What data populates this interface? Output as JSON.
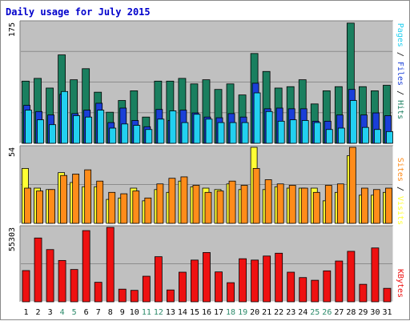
{
  "title": "Daily usage for July 2015",
  "colors": {
    "hits": "#1a7f5f",
    "files": "#1a3fd8",
    "pages": "#22d0f0",
    "visits": "#ffff33",
    "sites": "#ff8c1a",
    "kbytes": "#ee1111",
    "panel_bg": "#c0c0c0",
    "title": "#0000cc",
    "weekend_label": "#2b8a6a"
  },
  "chart_data": [
    {
      "type": "bar",
      "name": "hits-files-pages",
      "categories": [
        "1",
        "2",
        "3",
        "4",
        "5",
        "6",
        "7",
        "8",
        "9",
        "10",
        "11",
        "12",
        "13",
        "14",
        "15",
        "16",
        "17",
        "18",
        "19",
        "20",
        "21",
        "22",
        "23",
        "24",
        "25",
        "26",
        "27",
        "28",
        "29",
        "30",
        "31"
      ],
      "ymax_label": "175",
      "ylim": [
        0,
        175
      ],
      "series": [
        {
          "name": "Hits",
          "values": [
            90,
            94,
            80,
            128,
            92,
            108,
            74,
            45,
            62,
            76,
            38,
            90,
            90,
            94,
            86,
            92,
            78,
            86,
            70,
            130,
            104,
            80,
            82,
            92,
            57,
            76,
            82,
            174,
            82,
            76,
            84
          ]
        },
        {
          "name": "Files",
          "values": [
            55,
            46,
            41,
            71,
            43,
            48,
            58,
            30,
            51,
            33,
            24,
            49,
            33,
            48,
            44,
            38,
            37,
            43,
            38,
            87,
            50,
            51,
            50,
            50,
            32,
            32,
            41,
            78,
            41,
            44,
            40
          ]
        },
        {
          "name": "Pages",
          "values": [
            48,
            34,
            27,
            75,
            40,
            38,
            48,
            22,
            28,
            26,
            20,
            35,
            47,
            30,
            42,
            35,
            30,
            30,
            30,
            73,
            46,
            32,
            34,
            33,
            30,
            20,
            22,
            62,
            23,
            20,
            17
          ]
        }
      ],
      "axis_label": {
        "parts": [
          "Pages",
          "Files",
          "Hits"
        ],
        "separator": " / "
      }
    },
    {
      "type": "bar",
      "name": "visits-sites",
      "categories": [
        "1",
        "2",
        "3",
        "4",
        "5",
        "6",
        "7",
        "8",
        "9",
        "10",
        "11",
        "12",
        "13",
        "14",
        "15",
        "16",
        "17",
        "18",
        "19",
        "20",
        "21",
        "22",
        "23",
        "24",
        "25",
        "26",
        "27",
        "28",
        "29",
        "30",
        "31"
      ],
      "ymax_label": "54",
      "ylim": [
        0,
        54
      ],
      "series": [
        {
          "name": "Visits",
          "values": [
            39,
            25,
            24,
            36,
            29,
            26,
            26,
            17,
            18,
            25,
            16,
            24,
            22,
            30,
            26,
            25,
            24,
            28,
            24,
            54,
            24,
            26,
            25,
            25,
            25,
            16,
            22,
            48,
            20,
            20,
            22
          ]
        },
        {
          "name": "Sites",
          "values": [
            25,
            23,
            24,
            34,
            35,
            38,
            30,
            22,
            21,
            23,
            18,
            28,
            32,
            33,
            27,
            22,
            23,
            30,
            27,
            39,
            31,
            28,
            27,
            25,
            22,
            27,
            28,
            54,
            25,
            24,
            25
          ]
        }
      ],
      "axis_label": {
        "parts": [
          "Sites",
          "Visits"
        ],
        "separator": " / "
      }
    },
    {
      "type": "bar",
      "name": "kbytes",
      "categories": [
        "1",
        "2",
        "3",
        "4",
        "5",
        "6",
        "7",
        "8",
        "9",
        "10",
        "11",
        "12",
        "13",
        "14",
        "15",
        "16",
        "17",
        "18",
        "19",
        "20",
        "21",
        "22",
        "23",
        "24",
        "25",
        "26",
        "27",
        "28",
        "29",
        "30",
        "31"
      ],
      "ymax_label": "55303",
      "ylim": [
        0,
        55303
      ],
      "series": [
        {
          "name": "KBytes",
          "values": [
            23200,
            47400,
            38800,
            30700,
            24000,
            52900,
            14500,
            55300,
            9400,
            8500,
            19000,
            33500,
            8800,
            22000,
            31000,
            36600,
            22200,
            14200,
            32000,
            31000,
            34000,
            36100,
            22000,
            18000,
            16000,
            23000,
            30300,
            37500,
            13000,
            40000,
            10000
          ]
        }
      ],
      "axis_label": {
        "parts": [
          "KBytes"
        ],
        "separator": ""
      }
    }
  ],
  "x_labels": [
    "1",
    "2",
    "3",
    "4",
    "5",
    "6",
    "7",
    "8",
    "9",
    "10",
    "11",
    "12",
    "13",
    "14",
    "15",
    "16",
    "17",
    "18",
    "19",
    "20",
    "21",
    "22",
    "23",
    "24",
    "25",
    "26",
    "27",
    "28",
    "29",
    "30",
    "31"
  ],
  "weekend_days": [
    4,
    5,
    11,
    12,
    18,
    19,
    25,
    26
  ]
}
